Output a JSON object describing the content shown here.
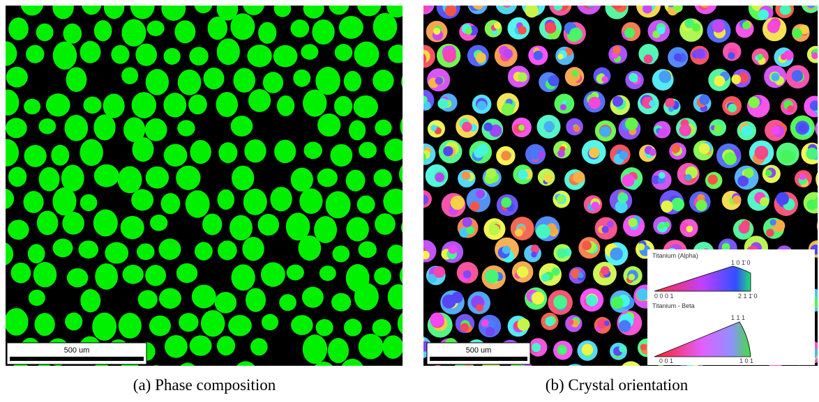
{
  "panels": [
    {
      "caption": "(a) Phase composition",
      "scale_bar": "500 um"
    },
    {
      "caption": "(b) Crystal orientation",
      "scale_bar": "500 um",
      "legend": {
        "alpha": {
          "title": "Titanium (Alpha)",
          "corner_left": "0 0 0 1",
          "corner_top": "1 0 1̄ 0",
          "corner_right": "2 1 1̄ 0"
        },
        "beta": {
          "title": "Titanium - Beta",
          "corner_left": "0 0 1",
          "corner_top": "1 1 1",
          "corner_right": "1 0 1"
        }
      }
    }
  ]
}
